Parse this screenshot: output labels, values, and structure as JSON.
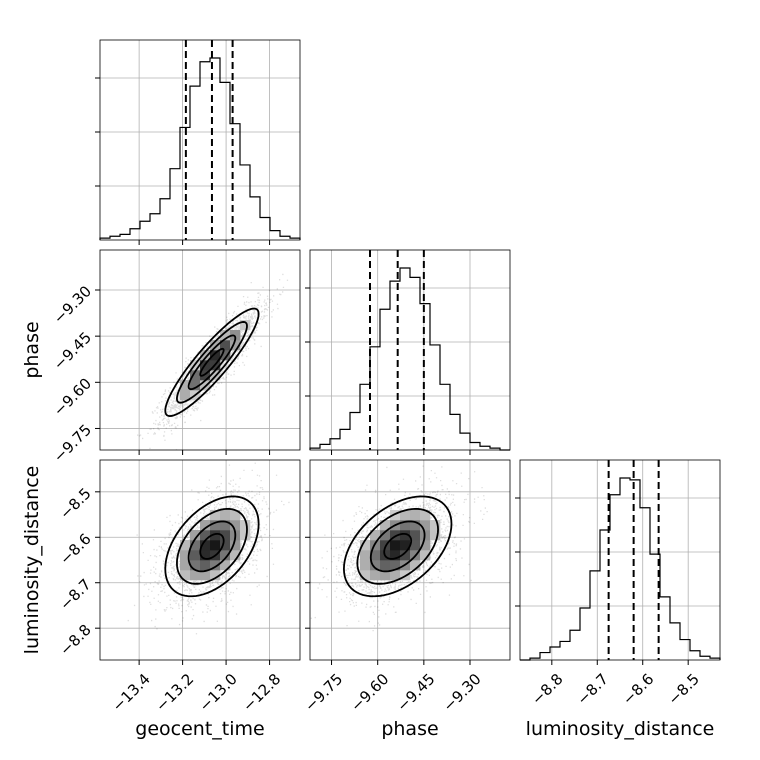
{
  "chart_data": {
    "type": "corner",
    "parameters": [
      "geocent_time",
      "phase",
      "luminosity_distance"
    ],
    "axis_labels": {
      "geocent_time": "geocent_time",
      "phase": "phase",
      "luminosity_distance": "luminosity_distance"
    },
    "ranges": {
      "geocent_time": [
        -13.58,
        -12.66
      ],
      "phase": [
        -9.82,
        -9.17
      ],
      "luminosity_distance": [
        -8.87,
        -8.43
      ]
    },
    "ticks": {
      "geocent_time": {
        "values": [
          -13.4,
          -13.2,
          -13.0,
          -12.8
        ],
        "labels": [
          "−13.4",
          "−13.2",
          "−13.0",
          "−12.8"
        ]
      },
      "phase": {
        "values": [
          -9.75,
          -9.6,
          -9.45,
          -9.3
        ],
        "labels": [
          "−9.75",
          "−9.60",
          "−9.45",
          "−9.30"
        ]
      },
      "luminosity_distance": {
        "values": [
          -8.8,
          -8.7,
          -8.6,
          -8.5
        ],
        "labels": [
          "−8.8",
          "−8.7",
          "−8.6",
          "−8.5"
        ]
      }
    },
    "quantiles": {
      "geocent_time": [
        -13.185,
        -13.065,
        -12.97
      ],
      "phase": [
        -9.625,
        -9.535,
        -9.45
      ],
      "luminosity_distance": [
        -8.675,
        -8.62,
        -8.565
      ]
    },
    "histograms": {
      "geocent_time": {
        "bins": 20,
        "counts": [
          1,
          2,
          3,
          6,
          10,
          14,
          22,
          38,
          60,
          82,
          95,
          97,
          84,
          62,
          40,
          23,
          12,
          5,
          2,
          1
        ]
      },
      "phase": {
        "bins": 20,
        "counts": [
          1,
          3,
          6,
          11,
          20,
          35,
          55,
          75,
          90,
          97,
          92,
          78,
          56,
          35,
          19,
          9,
          4,
          2,
          1,
          0
        ]
      },
      "luminosity_distance": {
        "bins": 20,
        "counts": [
          0,
          1,
          4,
          7,
          10,
          16,
          28,
          48,
          70,
          89,
          98,
          97,
          82,
          57,
          34,
          20,
          11,
          5,
          2,
          1
        ]
      }
    },
    "pair_correlations": {
      "phase_vs_geocent_time": 0.9,
      "luminosity_distance_vs_geocent_time": 0.45,
      "luminosity_distance_vs_phase": 0.45
    },
    "contour_levels": [
      0.118,
      0.393,
      0.675,
      0.864
    ],
    "grid": true
  }
}
